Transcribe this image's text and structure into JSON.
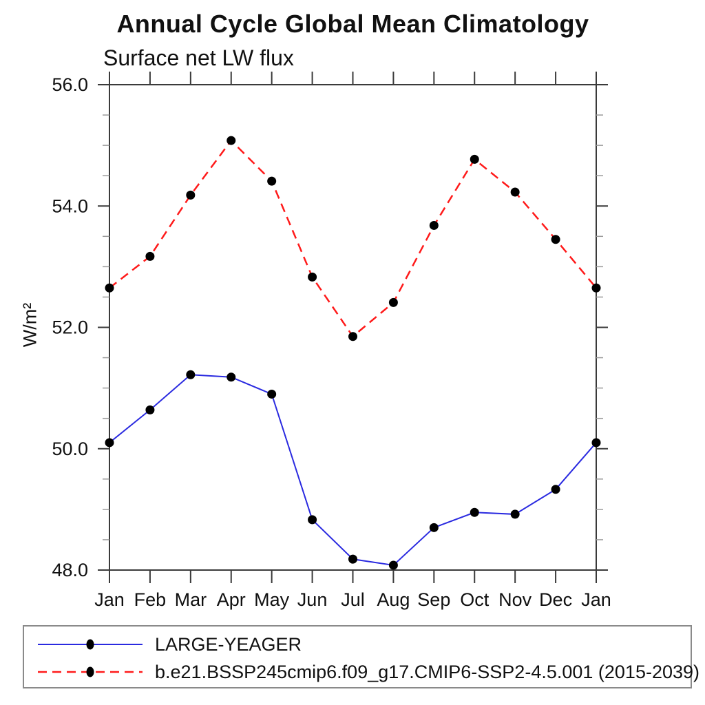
{
  "page": {
    "background": "#ffffff"
  },
  "header": {
    "title": "Annual Cycle Global Mean Climatology",
    "subtitle": "Surface net LW flux"
  },
  "chart_data": {
    "type": "line",
    "title": "Annual Cycle Global Mean Climatology",
    "subtitle": "Surface net LW flux",
    "ylabel": "W/m²",
    "xlabel": "",
    "categories": [
      "Jan",
      "Feb",
      "Mar",
      "Apr",
      "May",
      "Jun",
      "Jul",
      "Aug",
      "Sep",
      "Oct",
      "Nov",
      "Dec",
      "Jan"
    ],
    "ylim": [
      48.0,
      56.0
    ],
    "yticks_major": [
      48.0,
      50.0,
      52.0,
      54.0,
      56.0
    ],
    "ytick_labels": [
      "48.0",
      "50.0",
      "52.0",
      "54.0",
      "56.0"
    ],
    "ytick_minor_step": 0.5,
    "grid": false,
    "legend_position": "bottom",
    "axis_color": "#3a3a3a",
    "minor_tick_color": "#9a9a9a",
    "marker_color": "#000000",
    "series": [
      {
        "name": "LARGE-YEAGER",
        "color": "#2a2ae0",
        "line_style": "solid",
        "marker": "filled-circle",
        "values": [
          50.1,
          50.64,
          51.22,
          51.18,
          50.9,
          48.83,
          48.18,
          48.08,
          48.7,
          48.95,
          48.92,
          49.33,
          50.1
        ]
      },
      {
        "name": "b.e21.BSSP245cmip6.f09_g17.CMIP6-SSP2-4.5.001 (2015-2039)",
        "color": "#ff1a1a",
        "line_style": "dashed",
        "marker": "filled-circle",
        "values": [
          52.65,
          53.17,
          54.18,
          55.08,
          54.41,
          52.83,
          51.85,
          52.41,
          53.68,
          54.77,
          54.23,
          53.45,
          52.65
        ]
      }
    ]
  }
}
